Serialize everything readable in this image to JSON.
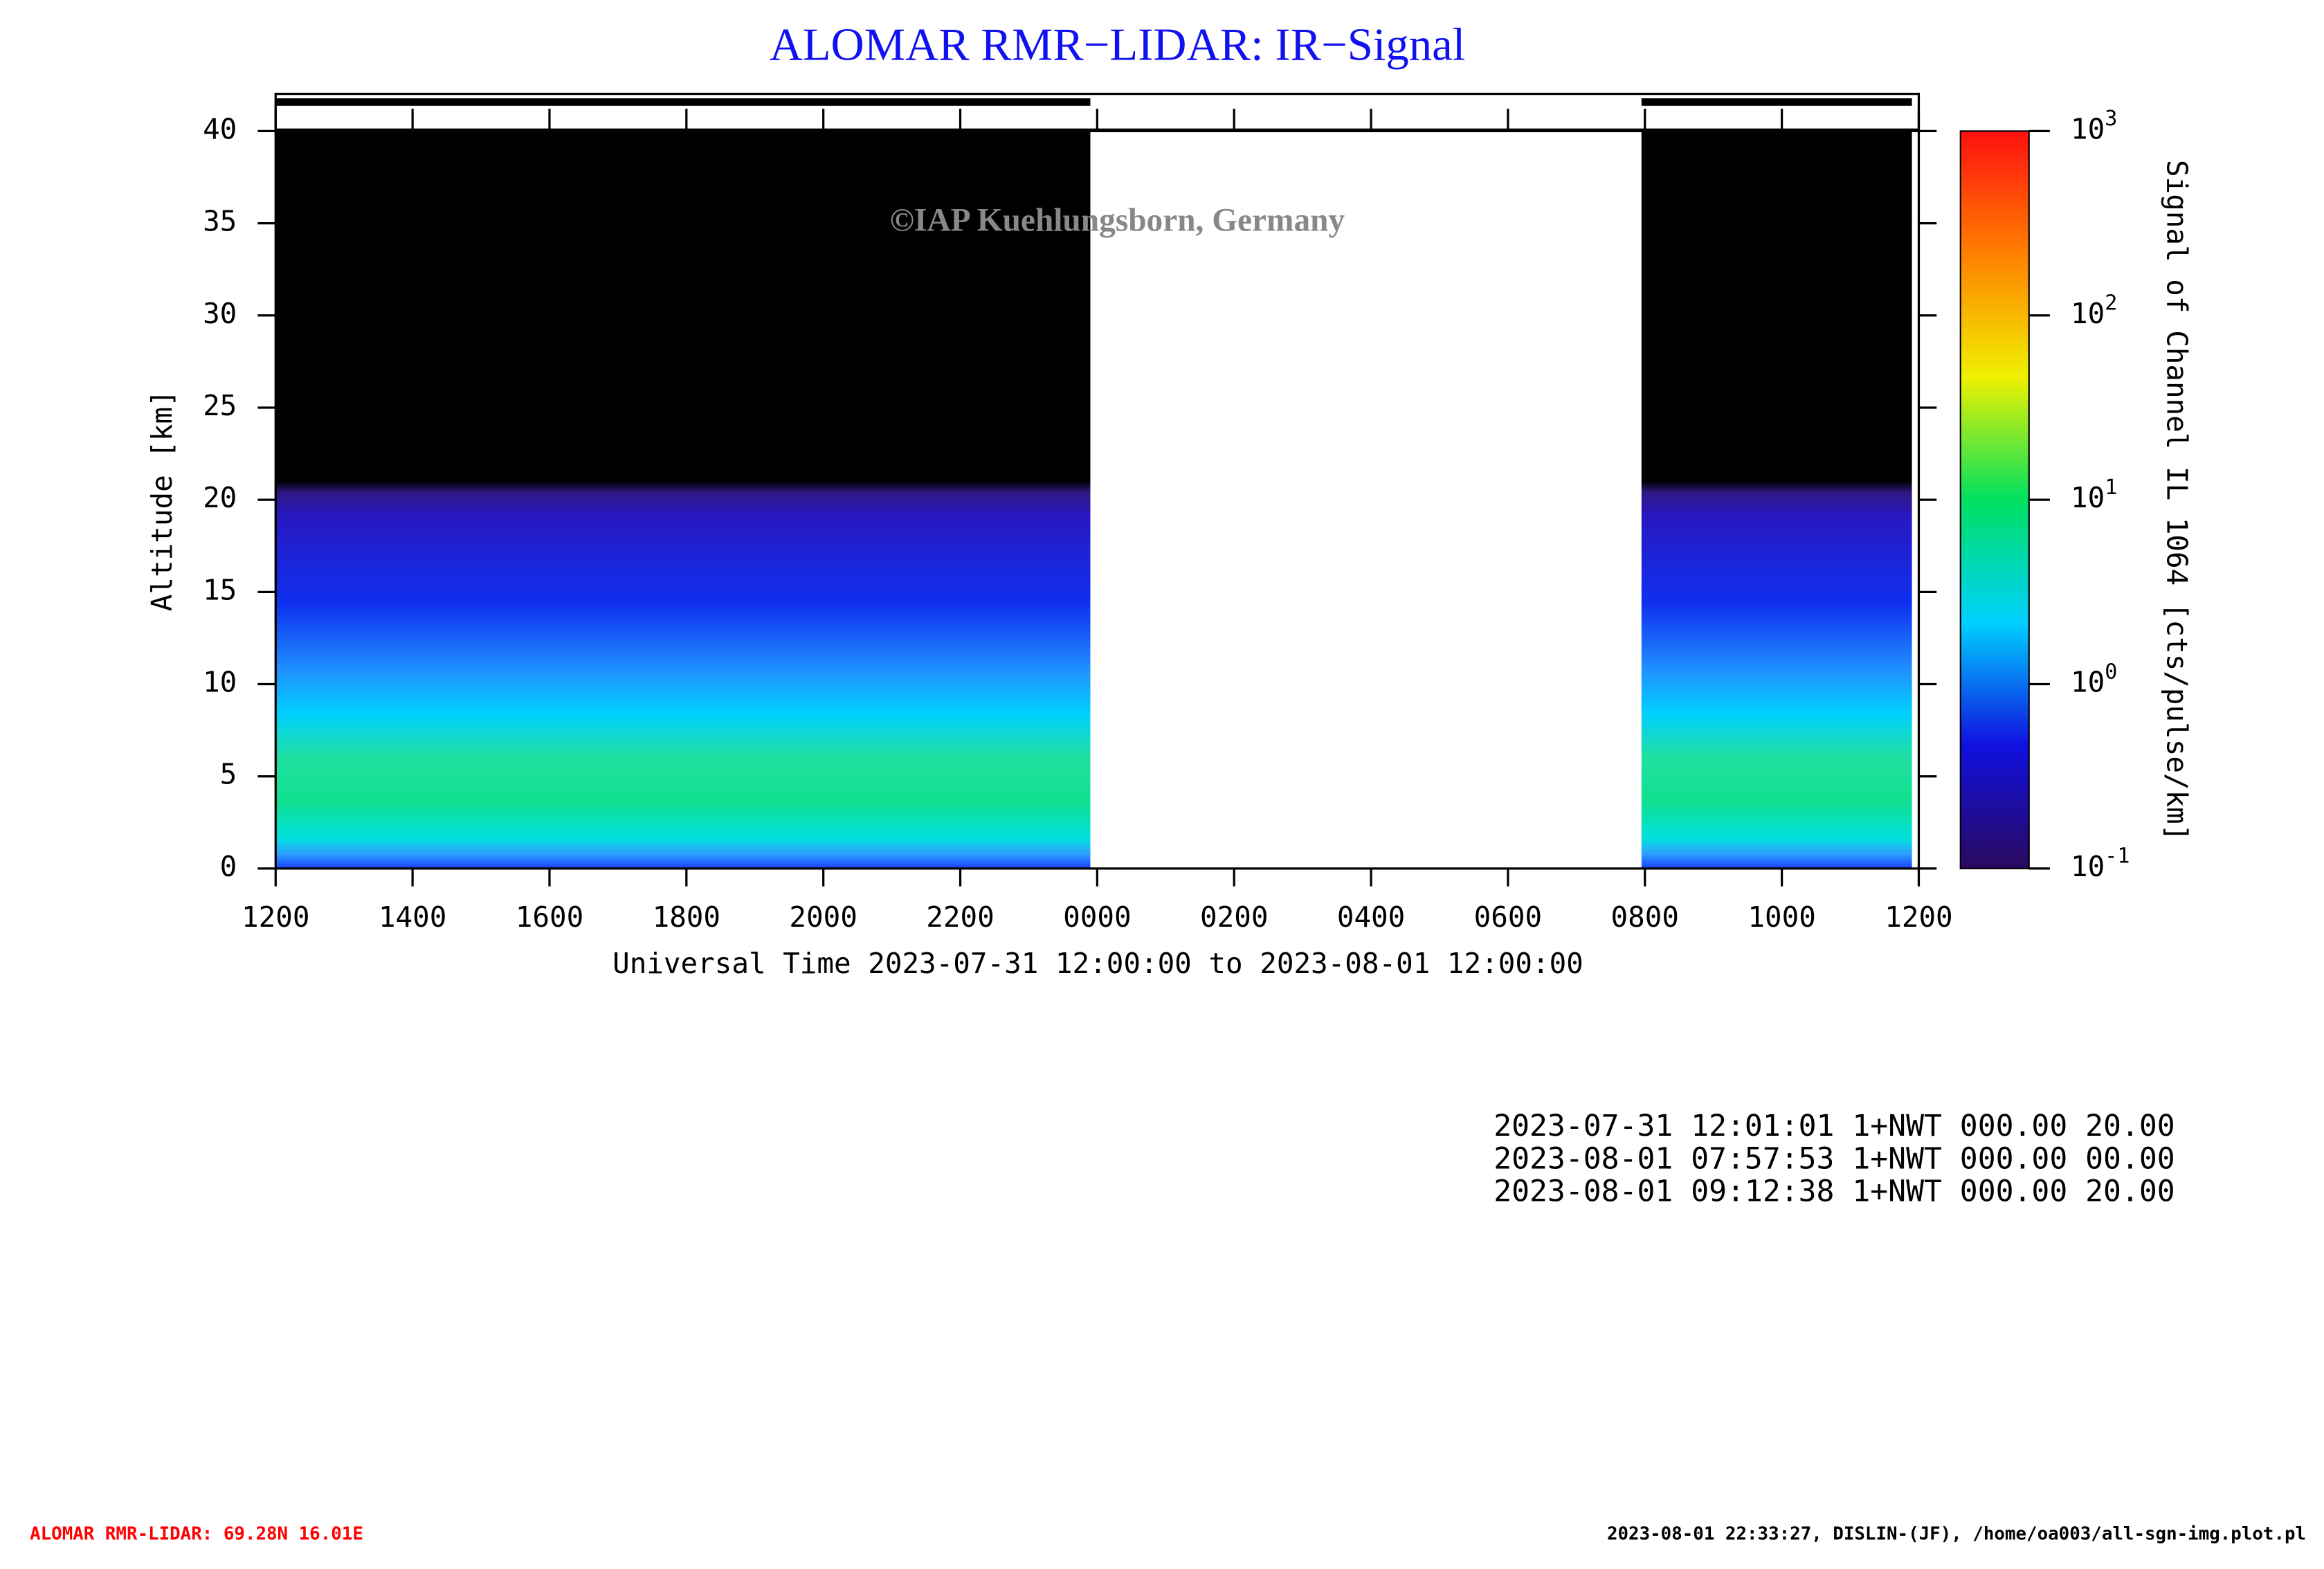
{
  "chart_data": {
    "type": "heatmap",
    "title": "ALOMAR RMR−LIDAR: IR−Signal",
    "watermark": "©IAP Kuehlungsborn, Germany",
    "ylabel": "Altitude [km]",
    "xlabel": "Universal Time 2023-07-31 12:00:00 to 2023-08-01 12:00:00",
    "xlim": [
      0,
      24
    ],
    "xticks": [
      {
        "value": 0,
        "label": "1200"
      },
      {
        "value": 2,
        "label": "1400"
      },
      {
        "value": 4,
        "label": "1600"
      },
      {
        "value": 6,
        "label": "1800"
      },
      {
        "value": 8,
        "label": "2000"
      },
      {
        "value": 10,
        "label": "2200"
      },
      {
        "value": 12,
        "label": "0000"
      },
      {
        "value": 14,
        "label": "0200"
      },
      {
        "value": 16,
        "label": "0400"
      },
      {
        "value": 18,
        "label": "0600"
      },
      {
        "value": 20,
        "label": "0800"
      },
      {
        "value": 22,
        "label": "1000"
      },
      {
        "value": 24,
        "label": "1200"
      }
    ],
    "ylim": [
      0,
      40
    ],
    "yticks": [
      0,
      5,
      10,
      15,
      20,
      25,
      30,
      35,
      40
    ],
    "segments": [
      [
        0,
        11.9
      ],
      [
        19.95,
        23.9
      ]
    ],
    "colorbar": {
      "label": "Signal of Channel IL 1064 [cts/pulse/km]",
      "log": true,
      "lim": [
        0.1,
        1000
      ],
      "ticks": [
        {
          "value": 0.1,
          "base": "10",
          "exponent": "-1"
        },
        {
          "value": 1,
          "base": "10",
          "exponent": "0"
        },
        {
          "value": 10,
          "base": "10",
          "exponent": "1"
        },
        {
          "value": 100,
          "base": "10",
          "exponent": "2"
        },
        {
          "value": 1000,
          "base": "10",
          "exponent": "3"
        }
      ],
      "colors": [
        "#2a0a5e",
        "#1010e0",
        "#00d0ff",
        "#00e060",
        "#f0f000",
        "#ff8000",
        "#ff1010"
      ]
    }
  },
  "info_lines": [
    "2023-07-31 12:01:01 1+NWT 000.00 20.00",
    "2023-08-01 07:57:53 1+NWT 000.00 00.00",
    "2023-08-01 09:12:38 1+NWT 000.00 20.00"
  ],
  "footer_left": "ALOMAR RMR-LIDAR: 69.28N 16.01E",
  "footer_right": "2023-08-01 22:33:27, DISLIN-(JF), /home/oa003/all-sgn-img.plot.pl"
}
